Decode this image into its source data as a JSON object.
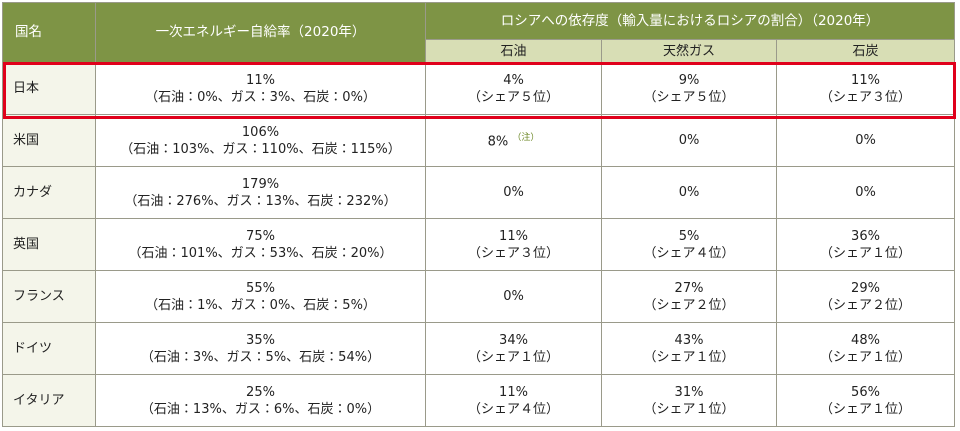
{
  "table": {
    "header": {
      "country": "国名",
      "self_sufficiency": "一次エネルギー自給率（2020年）",
      "dependence": "ロシアへの依存度（輸入量におけるロシアの割合）（2020年）",
      "oil": "石油",
      "gas": "天然ガス",
      "coal": "石炭"
    },
    "rows": [
      {
        "country": "日本",
        "self": [
          "11%",
          "（石油：0%、ガス：3%、石炭：0%）"
        ],
        "oil": [
          "4%",
          "（シェア５位）"
        ],
        "gas": [
          "9%",
          "（シェア５位）"
        ],
        "coal": [
          "11%",
          "（シェア３位）"
        ]
      },
      {
        "country": "米国",
        "self": [
          "106%",
          "（石油：103%、ガス：110%、石炭：115%）"
        ],
        "oil": [
          "8%"
        ],
        "oil_note": "（注）",
        "gas": [
          "0%"
        ],
        "coal": [
          "0%"
        ]
      },
      {
        "country": "カナダ",
        "self": [
          "179%",
          "（石油：276%、ガス：13%、石炭：232%）"
        ],
        "oil": [
          "0%"
        ],
        "gas": [
          "0%"
        ],
        "coal": [
          "0%"
        ]
      },
      {
        "country": "英国",
        "self": [
          "75%",
          "（石油：101%、ガス：53%、石炭：20%）"
        ],
        "oil": [
          "11%",
          "（シェア３位）"
        ],
        "gas": [
          "5%",
          "（シェア４位）"
        ],
        "coal": [
          "36%",
          "（シェア１位）"
        ]
      },
      {
        "country": "フランス",
        "self": [
          "55%",
          "（石油：1%、ガス：0%、石炭：5%）"
        ],
        "oil": [
          "0%"
        ],
        "gas": [
          "27%",
          "（シェア２位）"
        ],
        "coal": [
          "29%",
          "（シェア２位）"
        ]
      },
      {
        "country": "ドイツ",
        "self": [
          "35%",
          "（石油：3%、ガス：5%、石炭：54%）"
        ],
        "oil": [
          "34%",
          "（シェア１位）"
        ],
        "gas": [
          "43%",
          "（シェア１位）"
        ],
        "coal": [
          "48%",
          "（シェア１位）"
        ]
      },
      {
        "country": "イタリア",
        "self": [
          "25%",
          "（石油：13%、ガス：6%、石炭：0%）"
        ],
        "oil": [
          "11%",
          "（シェア４位）"
        ],
        "gas": [
          "31%",
          "（シェア１位）"
        ],
        "coal": [
          "56%",
          "（シェア１位）"
        ]
      }
    ]
  }
}
